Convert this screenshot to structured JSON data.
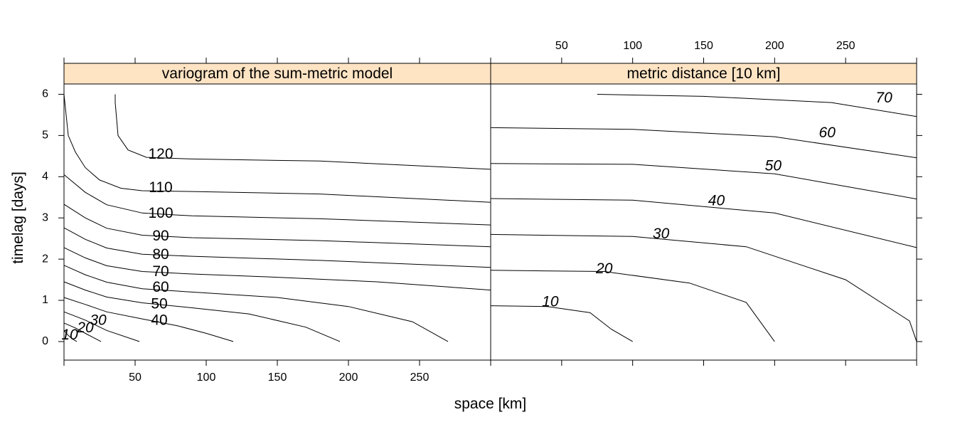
{
  "chart_data": [
    {
      "type": "contour",
      "title": "variogram of the sum-metric model",
      "xlabel": "space [km]",
      "ylabel": "timelag [days]",
      "xlim": [
        0,
        300
      ],
      "ylim": [
        -0.45,
        6.25
      ],
      "x_ticks": [
        50,
        100,
        150,
        200,
        250
      ],
      "y_ticks": [
        0,
        1,
        2,
        3,
        4,
        5,
        6
      ],
      "strip_color": "#ffe4c4",
      "contours": [
        {
          "label": "10",
          "label_at": [
            4,
            0.15
          ],
          "points": [
            [
              0,
              0.27
            ],
            [
              3,
              0.15
            ],
            [
              6,
              0.06
            ],
            [
              9,
              0
            ]
          ]
        },
        {
          "label": "20",
          "label_at": [
            15,
            0.32
          ],
          "points": [
            [
              0,
              0.45
            ],
            [
              8,
              0.33
            ],
            [
              16,
              0.18
            ],
            [
              26,
              0
            ]
          ]
        },
        {
          "label": "30",
          "label_at": [
            24,
            0.5
          ],
          "points": [
            [
              0,
              0.72
            ],
            [
              15,
              0.52
            ],
            [
              30,
              0.27
            ],
            [
              53,
              0
            ]
          ]
        },
        {
          "label": "40",
          "label_at": [
            67,
            0.5
          ],
          "points": [
            [
              0,
              1.07
            ],
            [
              15,
              0.9
            ],
            [
              30,
              0.72
            ],
            [
              55,
              0.55
            ],
            [
              80,
              0.38
            ],
            [
              100,
              0.2
            ],
            [
              119,
              0
            ]
          ]
        },
        {
          "label": "50",
          "label_at": [
            67,
            0.9
          ],
          "points": [
            [
              0,
              1.45
            ],
            [
              15,
              1.25
            ],
            [
              30,
              1.08
            ],
            [
              55,
              0.94
            ],
            [
              90,
              0.82
            ],
            [
              130,
              0.67
            ],
            [
              170,
              0.35
            ],
            [
              194,
              0
            ]
          ]
        },
        {
          "label": "60",
          "label_at": [
            68,
            1.3
          ],
          "points": [
            [
              0,
              1.85
            ],
            [
              15,
              1.62
            ],
            [
              30,
              1.44
            ],
            [
              55,
              1.28
            ],
            [
              90,
              1.2
            ],
            [
              150,
              1.07
            ],
            [
              200,
              0.85
            ],
            [
              245,
              0.48
            ],
            [
              270,
              0
            ]
          ]
        },
        {
          "label": "70",
          "label_at": [
            68,
            1.68
          ],
          "points": [
            [
              0,
              2.28
            ],
            [
              15,
              2.03
            ],
            [
              30,
              1.84
            ],
            [
              55,
              1.7
            ],
            [
              90,
              1.64
            ],
            [
              150,
              1.56
            ],
            [
              220,
              1.45
            ],
            [
              300,
              1.25
            ]
          ]
        },
        {
          "label": "80",
          "label_at": [
            68,
            2.1
          ],
          "points": [
            [
              0,
              2.76
            ],
            [
              15,
              2.48
            ],
            [
              30,
              2.27
            ],
            [
              55,
              2.12
            ],
            [
              90,
              2.07
            ],
            [
              180,
              1.97
            ],
            [
              300,
              1.8
            ]
          ]
        },
        {
          "label": "90",
          "label_at": [
            68,
            2.55
          ],
          "points": [
            [
              0,
              3.33
            ],
            [
              15,
              3.0
            ],
            [
              30,
              2.75
            ],
            [
              55,
              2.58
            ],
            [
              90,
              2.52
            ],
            [
              180,
              2.45
            ],
            [
              300,
              2.3
            ]
          ]
        },
        {
          "label": "100",
          "label_at": [
            68,
            3.1
          ],
          "points": [
            [
              0,
              4.05
            ],
            [
              15,
              3.62
            ],
            [
              30,
              3.32
            ],
            [
              55,
              3.12
            ],
            [
              90,
              3.05
            ],
            [
              180,
              2.98
            ],
            [
              300,
              2.83
            ]
          ]
        },
        {
          "label": "110",
          "label_at": [
            68,
            3.72
          ],
          "points": [
            [
              0,
              6.0
            ],
            [
              3,
              5.0
            ],
            [
              8,
              4.6
            ],
            [
              15,
              4.22
            ],
            [
              25,
              3.92
            ],
            [
              40,
              3.72
            ],
            [
              55,
              3.66
            ],
            [
              90,
              3.64
            ],
            [
              180,
              3.58
            ],
            [
              300,
              3.38
            ]
          ]
        },
        {
          "label": "120",
          "label_at": [
            68,
            4.53
          ],
          "points": [
            [
              36,
              6.0
            ],
            [
              36,
              5.8
            ],
            [
              38,
              5.0
            ],
            [
              45,
              4.65
            ],
            [
              58,
              4.47
            ],
            [
              90,
              4.43
            ],
            [
              180,
              4.38
            ],
            [
              300,
              4.18
            ]
          ]
        }
      ]
    },
    {
      "type": "contour",
      "title": "metric distance [10 km]",
      "xlabel": "space [km]",
      "ylabel": "timelag [days]",
      "xlim": [
        0,
        300
      ],
      "ylim": [
        -0.45,
        6.25
      ],
      "x_ticks": [
        50,
        100,
        150,
        200,
        250
      ],
      "y_ticks": [
        0,
        1,
        2,
        3,
        4,
        5,
        6
      ],
      "strip_color": "#ffe4c4",
      "contours": [
        {
          "label": "10",
          "label_at": [
            42,
            0.95
          ],
          "points": [
            [
              0,
              0.87
            ],
            [
              40,
              0.85
            ],
            [
              70,
              0.7
            ],
            [
              85,
              0.3
            ],
            [
              100,
              0
            ]
          ]
        },
        {
          "label": "20",
          "label_at": [
            80,
            1.75
          ],
          "points": [
            [
              0,
              1.73
            ],
            [
              80,
              1.7
            ],
            [
              140,
              1.42
            ],
            [
              180,
              0.95
            ],
            [
              200,
              0
            ]
          ]
        },
        {
          "label": "30",
          "label_at": [
            120,
            2.6
          ],
          "points": [
            [
              0,
              2.6
            ],
            [
              100,
              2.55
            ],
            [
              180,
              2.3
            ],
            [
              250,
              1.5
            ],
            [
              295,
              0.5
            ],
            [
              300,
              0
            ]
          ]
        },
        {
          "label": "40",
          "label_at": [
            159,
            3.4
          ],
          "points": [
            [
              0,
              3.47
            ],
            [
              100,
              3.43
            ],
            [
              200,
              3.12
            ],
            [
              300,
              2.28
            ]
          ]
        },
        {
          "label": "50",
          "label_at": [
            199,
            4.25
          ],
          "points": [
            [
              0,
              4.32
            ],
            [
              100,
              4.3
            ],
            [
              200,
              4.07
            ],
            [
              300,
              3.46
            ]
          ]
        },
        {
          "label": "60",
          "label_at": [
            237,
            5.05
          ],
          "points": [
            [
              0,
              5.19
            ],
            [
              100,
              5.15
            ],
            [
              200,
              4.97
            ],
            [
              300,
              4.46
            ]
          ]
        },
        {
          "label": "70",
          "label_at": [
            277,
            5.9
          ],
          "points": [
            [
              75,
              6.0
            ],
            [
              150,
              5.95
            ],
            [
              240,
              5.8
            ],
            [
              300,
              5.46
            ]
          ]
        }
      ]
    }
  ]
}
